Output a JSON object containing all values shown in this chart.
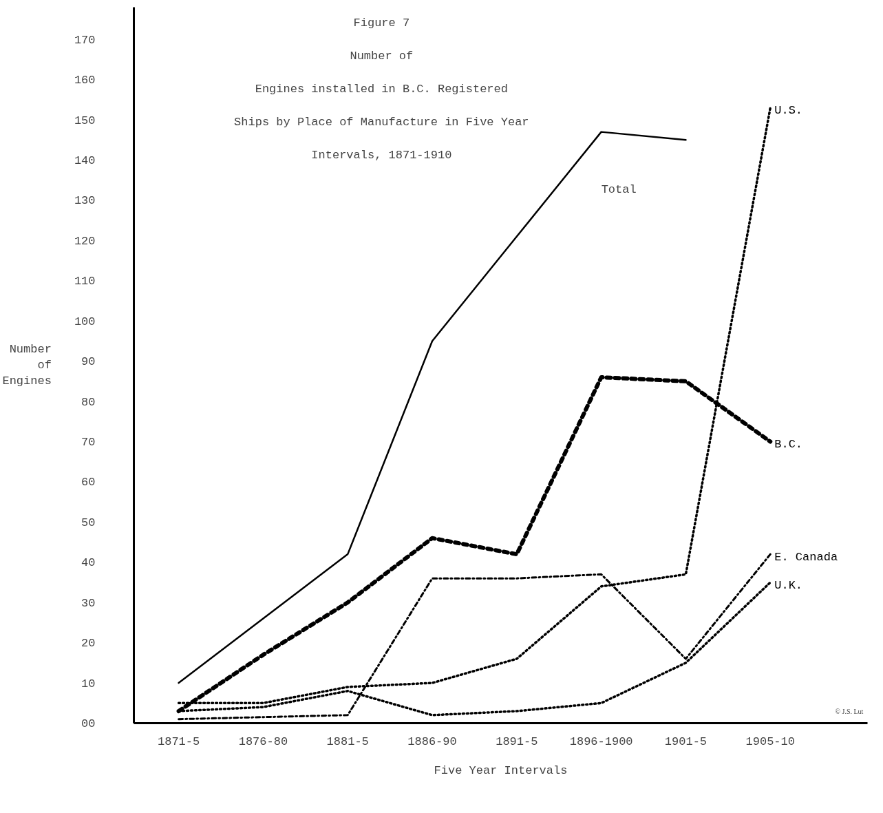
{
  "chart_data": {
    "type": "line",
    "title": "Figure 7",
    "subtitle": "Number of\nEngines installed in B.C. Registered\nShips by Place of Manufacture in Five Year\nIntervals, 1871-1910",
    "xlabel": "Five Year Intervals",
    "ylabel": "Number\nof\nEngines",
    "categories": [
      "1871-5",
      "1876-80",
      "1881-5",
      "1886-90",
      "1891-5",
      "1896-1900",
      "1901-5",
      "1905-10"
    ],
    "ylim": [
      0,
      178
    ],
    "yticks": [
      {
        "value": 0,
        "label": "00"
      },
      10,
      20,
      30,
      40,
      50,
      60,
      70,
      80,
      90,
      100,
      110,
      120,
      130,
      140,
      150,
      160,
      170
    ],
    "grid": false,
    "marker": "none",
    "series": [
      {
        "color": "#000000",
        "line_style": "solid",
        "values": [
          10,
          26,
          42,
          95,
          121,
          147,
          145,
          null
        ]
      },
      {
        "name": "B.C.",
        "color": "#000000",
        "line_style": "dashed",
        "values": [
          3,
          17,
          30,
          46,
          42,
          86,
          85,
          70
        ]
      },
      {
        "name": "U.S.",
        "color": "#000000",
        "line_style": "dotted",
        "values": [
          5,
          5,
          9,
          10,
          16,
          34,
          37,
          153
        ]
      },
      {
        "name": "E. Canada",
        "color": "#000000",
        "line_style": "dashdot",
        "values": [
          1,
          1.5,
          2,
          36,
          36,
          37,
          16,
          42
        ]
      },
      {
        "name": "U.K.",
        "color": "#000000",
        "line_style": "dotted",
        "values": [
          3,
          4,
          8,
          2,
          3,
          5,
          15,
          35
        ]
      }
    ],
    "annotations": [
      "Total",
      "© J.S. Lut"
    ]
  }
}
